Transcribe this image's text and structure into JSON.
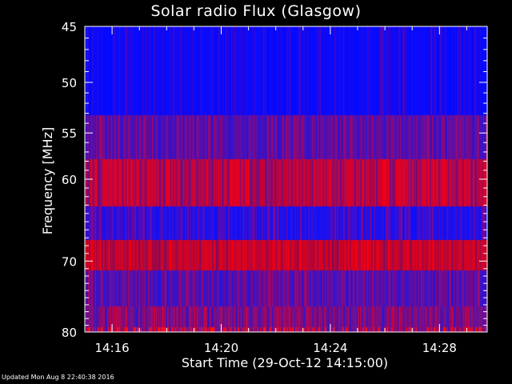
{
  "chart_data": {
    "type": "heatmap",
    "title": "Solar radio Flux (Glasgow)",
    "xlabel": "Start Time (29-Oct-12 14:15:00)",
    "ylabel": "Frequency [MHz]",
    "x_tick_labels": [
      "14:16",
      "14:20",
      "14:24",
      "14:28"
    ],
    "x_tick_minutes": [
      1,
      5,
      9,
      13
    ],
    "xlim_minutes": [
      0,
      14.75
    ],
    "y_tick_labels": [
      "45",
      "50",
      "55",
      "60",
      "70",
      "80"
    ],
    "y_tick_values": [
      45,
      50,
      55,
      60,
      70,
      80
    ],
    "ylim_mhz": [
      45,
      80
    ],
    "y_scale": "log",
    "grid": false,
    "bands": [
      {
        "freq_range_mhz": [
          45,
          53.2
        ],
        "base_color": "#0a0aff",
        "red_line_density": 0.18,
        "red_line_intensity": 0.35
      },
      {
        "freq_range_mhz": [
          53.2,
          57.8
        ],
        "base_color": "#4010c0",
        "red_line_density": 0.45,
        "red_line_intensity": 0.55
      },
      {
        "freq_range_mhz": [
          57.8,
          63.2
        ],
        "base_color": "#7a0c78",
        "red_line_density": 0.7,
        "red_line_intensity": 0.95
      },
      {
        "freq_range_mhz": [
          63.2,
          67.3
        ],
        "base_color": "#1a10f0",
        "red_line_density": 0.3,
        "red_line_intensity": 0.5
      },
      {
        "freq_range_mhz": [
          67.3,
          71.2
        ],
        "base_color": "#8a0a55",
        "red_line_density": 0.8,
        "red_line_intensity": 0.95
      },
      {
        "freq_range_mhz": [
          71.2,
          76.2
        ],
        "base_color": "#3812c8",
        "red_line_density": 0.4,
        "red_line_intensity": 0.6
      },
      {
        "freq_range_mhz": [
          76.2,
          80
        ],
        "base_color": "#4a12b0",
        "red_line_density": 0.55,
        "red_line_intensity": 0.75
      }
    ]
  },
  "footer": {
    "updated": "Updated Mon Aug  8 22:40:38 2016"
  },
  "colors": {
    "background": "#000000",
    "axes": "#ffffff",
    "low": "#0000ff",
    "high": "#ff0000"
  }
}
